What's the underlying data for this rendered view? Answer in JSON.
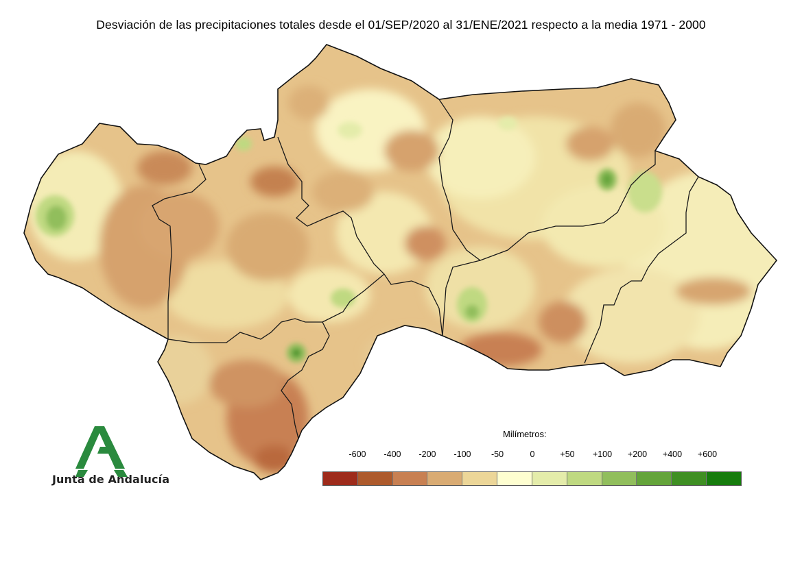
{
  "title": "Desviación de las precipitaciones totales desde el 01/SEP/2020 al 31/ENE/2021 respecto a la media 1971 - 2000",
  "legend": {
    "title": "Milímetros:",
    "labels": [
      "-600",
      "-400",
      "-200",
      "-100",
      "-50",
      "0",
      "+50",
      "+100",
      "+200",
      "+400",
      "+600"
    ],
    "colors": [
      "#9e2b1b",
      "#ad5a2c",
      "#c88052",
      "#d9ab73",
      "#ecd698",
      "#fefed0",
      "#e4ecaa",
      "#bfd981",
      "#91be5c",
      "#64a43a",
      "#3f8f23",
      "#167c0d"
    ]
  },
  "logo": {
    "text": "Junta de Andalucía",
    "color": "#2a8a3e"
  }
}
